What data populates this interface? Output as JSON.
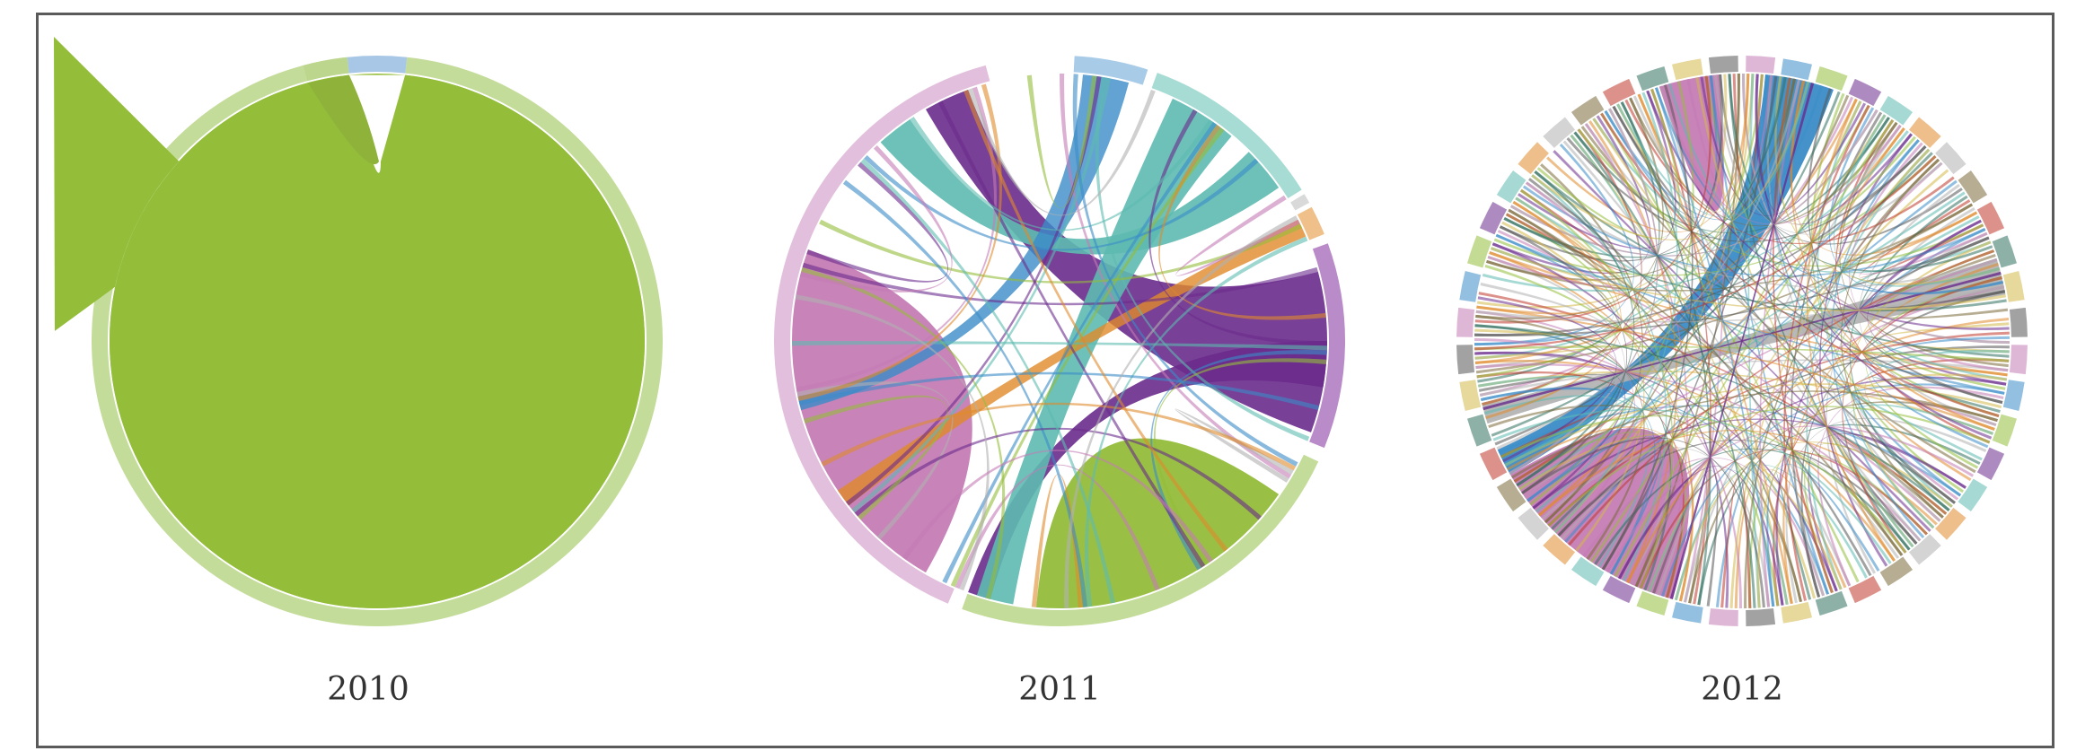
{
  "figure": {
    "panels": [
      {
        "year": "2010",
        "description_for_render": "chord",
        "groups": [
          {
            "color": "#94bd3a",
            "ring": "#c4dc99",
            "start": 6,
            "end": 354
          },
          {
            "color": "#8fb33a",
            "ring": "#bcd78d",
            "start": -15,
            "end": -6
          },
          {
            "color": "#ffffff",
            "ring": "#a8c7e6",
            "start": -6,
            "end": 6
          }
        ],
        "labels": [],
        "dense": false
      },
      {
        "year": "2011",
        "groups": [
          {
            "color": "#c57cb5",
            "ring": "#e2bfdc",
            "start": 203,
            "end": 345
          },
          {
            "color": "#94bd3a",
            "ring": "#c4dc99",
            "start": 115,
            "end": 200
          },
          {
            "color": "#6a2b8c",
            "ring": "#b98bc8",
            "start": 70,
            "end": 112
          },
          {
            "color": "#5dbab0",
            "ring": "#a6dcd4",
            "start": 20,
            "end": 58
          },
          {
            "color": "#3b8cc8",
            "ring": "#a8cbe8",
            "start": 3,
            "end": 18
          },
          {
            "color": "#e08a2b",
            "ring": "#f0c08a",
            "start": 62,
            "end": 68
          },
          {
            "color": "#b0b0b0",
            "ring": "#d9d9d9",
            "start": 59,
            "end": 61
          }
        ],
        "dense": false
      },
      {
        "year": "2012",
        "dense": true
      }
    ]
  }
}
